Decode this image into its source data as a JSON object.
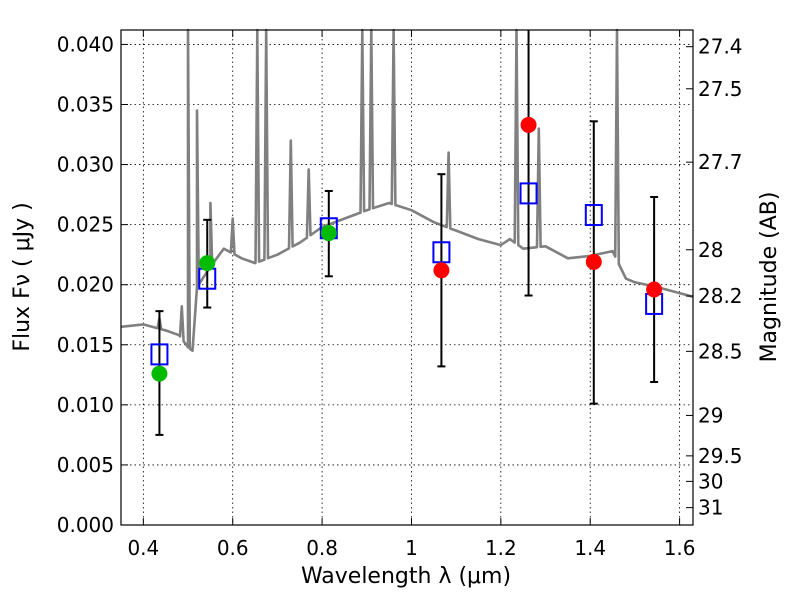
{
  "chart_data": {
    "type": "scatter",
    "xlabel": "Wavelength  λ (μm)",
    "ylabel": "Flux  Fν  ( μJy )",
    "y2label": "Magnitude (AB)",
    "xlim": [
      0.35,
      1.63
    ],
    "ylim": [
      0.0,
      0.0412
    ],
    "grid": true,
    "x_ticks": [
      0.4,
      0.6,
      0.8,
      1.0,
      1.2,
      1.4,
      1.6
    ],
    "x_tick_labels": [
      "0.4",
      "0.6",
      "0.8",
      "1",
      "1.2",
      "1.4",
      "1.6"
    ],
    "y_ticks": [
      0.0,
      0.005,
      0.01,
      0.015,
      0.02,
      0.025,
      0.03,
      0.035,
      0.04
    ],
    "y_tick_labels": [
      "0.000",
      "0.005",
      "0.010",
      "0.015",
      "0.020",
      "0.025",
      "0.030",
      "0.035",
      "0.040"
    ],
    "mag_ticks": [
      27.4,
      27.5,
      27.7,
      28,
      28.2,
      28.5,
      29,
      29.5,
      30,
      31
    ],
    "mag_tick_labels": [
      "27.4",
      "27.5",
      "27.7",
      "28",
      "28.2",
      "28.5",
      "29",
      "29.5",
      "30",
      "31"
    ],
    "model_spectrum": {
      "color": "#808080",
      "continuum": [
        [
          0.35,
          0.0165
        ],
        [
          0.4,
          0.0167
        ],
        [
          0.45,
          0.0162
        ],
        [
          0.48,
          0.0158
        ],
        [
          0.5,
          0.0148
        ],
        [
          0.51,
          0.0145
        ],
        [
          0.52,
          0.0198
        ],
        [
          0.55,
          0.0215
        ],
        [
          0.58,
          0.023
        ],
        [
          0.62,
          0.0222
        ],
        [
          0.65,
          0.0218
        ],
        [
          0.7,
          0.0225
        ],
        [
          0.75,
          0.0235
        ],
        [
          0.8,
          0.0248
        ],
        [
          0.85,
          0.0255
        ],
        [
          0.9,
          0.0262
        ],
        [
          0.95,
          0.0268
        ],
        [
          1.0,
          0.0262
        ],
        [
          1.05,
          0.0252
        ],
        [
          1.1,
          0.0245
        ],
        [
          1.15,
          0.0238
        ],
        [
          1.2,
          0.0233
        ],
        [
          1.22,
          0.0238
        ],
        [
          1.25,
          0.023
        ],
        [
          1.3,
          0.0232
        ],
        [
          1.35,
          0.0222
        ],
        [
          1.4,
          0.0224
        ],
        [
          1.45,
          0.0228
        ],
        [
          1.48,
          0.0205
        ],
        [
          1.5,
          0.0202
        ],
        [
          1.55,
          0.0198
        ],
        [
          1.6,
          0.0193
        ],
        [
          1.63,
          0.019
        ]
      ],
      "emission_lines": [
        [
          0.436,
          0.0172
        ],
        [
          0.486,
          0.0182
        ],
        [
          0.5,
          0.0412
        ],
        [
          0.52,
          0.0345
        ],
        [
          0.55,
          0.0268
        ],
        [
          0.6,
          0.0255
        ],
        [
          0.655,
          0.0412
        ],
        [
          0.675,
          0.0412
        ],
        [
          0.73,
          0.032
        ],
        [
          0.77,
          0.0296
        ],
        [
          0.89,
          0.0412
        ],
        [
          0.91,
          0.0412
        ],
        [
          0.96,
          0.0412
        ],
        [
          1.083,
          0.031
        ],
        [
          1.235,
          0.0412
        ],
        [
          1.285,
          0.033
        ],
        [
          1.46,
          0.0412
        ]
      ]
    },
    "series": [
      {
        "marker": "open-square",
        "color": "#0000ff",
        "points": [
          [
            0.436,
            0.0142
          ],
          [
            0.543,
            0.0205
          ],
          [
            0.815,
            0.0247
          ],
          [
            1.067,
            0.0227
          ],
          [
            1.262,
            0.0276
          ],
          [
            1.408,
            0.0258
          ],
          [
            1.543,
            0.0184
          ]
        ]
      },
      {
        "marker": "filled-circle",
        "color": "#00bb00",
        "points": [
          [
            0.436,
            0.0126
          ],
          [
            0.543,
            0.0218
          ],
          [
            0.815,
            0.0243
          ]
        ]
      },
      {
        "marker": "filled-circle",
        "color": "#ff0000",
        "points": [
          [
            1.067,
            0.0212
          ],
          [
            1.262,
            0.0333
          ],
          [
            1.408,
            0.0219
          ],
          [
            1.543,
            0.0196
          ]
        ]
      }
    ],
    "error_bars": [
      {
        "x": 0.436,
        "low": 0.0075,
        "high": 0.0178
      },
      {
        "x": 0.543,
        "low": 0.0181,
        "high": 0.0254
      },
      {
        "x": 0.815,
        "low": 0.0207,
        "high": 0.0278
      },
      {
        "x": 1.067,
        "low": 0.0132,
        "high": 0.0292
      },
      {
        "x": 1.262,
        "low": 0.0191,
        "high": 0.0412
      },
      {
        "x": 1.408,
        "low": 0.0101,
        "high": 0.0336
      },
      {
        "x": 1.543,
        "low": 0.0119,
        "high": 0.0273
      }
    ]
  }
}
